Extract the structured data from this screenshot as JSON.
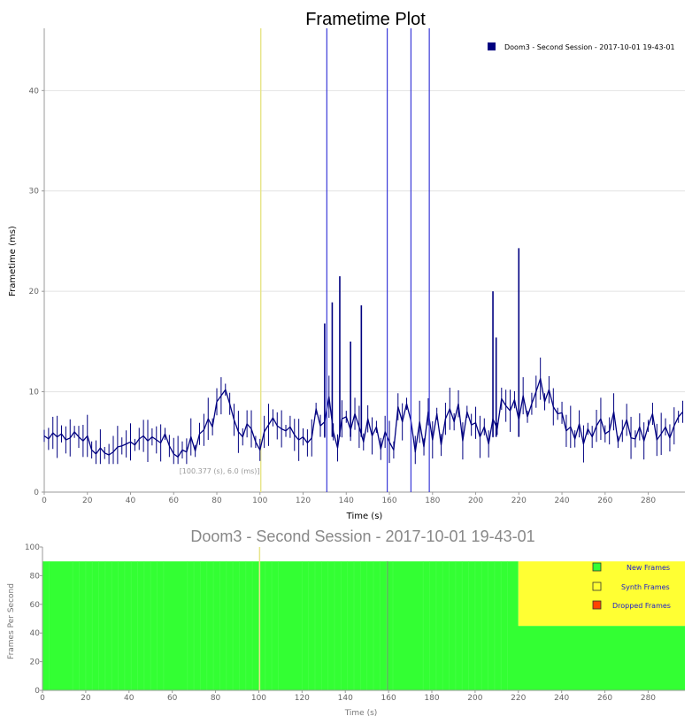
{
  "colors": {
    "series_line": "#000080",
    "spike_line": "#3a3ad8",
    "cursor_line": "#e8e58a",
    "new_frames": "#33ff33",
    "synth_frames": "#ffff33",
    "dropped_frames": "#ff4400",
    "grid": "#e2e2e2"
  },
  "chart_data": [
    {
      "type": "line",
      "title": "Frametime Plot",
      "xlabel": "Time (s)",
      "ylabel": "Frametime (ms)",
      "xlim": [
        0,
        297
      ],
      "ylim": [
        0,
        46.2
      ],
      "xticks": [
        0,
        20,
        40,
        60,
        80,
        100,
        120,
        140,
        160,
        180,
        200,
        220,
        240,
        260,
        280
      ],
      "yticks": [
        0,
        10,
        20,
        30,
        40
      ],
      "grid": true,
      "legend_position": "top-right",
      "series": [
        {
          "name": "Doom3 - Second Session - 2017-10-01 19-43-01",
          "x": [
            0,
            2,
            4,
            6,
            8,
            10,
            12,
            14,
            16,
            18,
            20,
            22,
            24,
            26,
            28,
            30,
            32,
            34,
            36,
            38,
            40,
            42,
            44,
            46,
            48,
            50,
            52,
            54,
            56,
            58,
            60,
            62,
            64,
            66,
            68,
            70,
            72,
            74,
            76,
            78,
            80,
            82,
            84,
            86,
            88,
            90,
            92,
            94,
            96,
            98,
            100,
            102,
            104,
            106,
            108,
            110,
            112,
            114,
            116,
            118,
            120,
            122,
            124,
            126,
            128,
            130,
            132,
            134,
            136,
            138,
            140,
            142,
            144,
            146,
            148,
            150,
            152,
            154,
            156,
            158,
            160,
            162,
            164,
            166,
            168,
            170,
            172,
            174,
            176,
            178,
            180,
            182,
            184,
            186,
            188,
            190,
            192,
            194,
            196,
            198,
            200,
            202,
            204,
            206,
            208,
            210,
            212,
            214,
            216,
            218,
            220,
            222,
            224,
            226,
            228,
            230,
            232,
            234,
            236,
            238,
            240,
            242,
            244,
            246,
            248,
            250,
            252,
            254,
            256,
            258,
            260,
            262,
            264,
            266,
            268,
            270,
            272,
            274,
            276,
            278,
            280,
            282,
            284,
            286,
            288,
            290,
            292,
            294,
            296
          ],
          "values": [
            5.6,
            5.3,
            5.9,
            5.5,
            5.8,
            5.2,
            5.4,
            6.0,
            5.5,
            5.1,
            5.6,
            4.2,
            3.8,
            4.4,
            3.9,
            3.7,
            4.0,
            4.5,
            4.6,
            4.8,
            5.0,
            4.7,
            5.3,
            5.6,
            5.1,
            5.5,
            5.2,
            4.9,
            5.8,
            4.6,
            3.8,
            3.5,
            4.2,
            4.0,
            5.5,
            4.1,
            5.8,
            6.2,
            7.3,
            6.5,
            9.0,
            9.6,
            10.2,
            8.8,
            7.2,
            6.0,
            5.5,
            6.8,
            6.3,
            5.0,
            4.2,
            6.0,
            6.7,
            7.4,
            6.6,
            6.3,
            6.1,
            6.5,
            5.7,
            5.2,
            5.5,
            4.9,
            5.4,
            8.3,
            6.6,
            7.0,
            9.5,
            6.0,
            4.4,
            7.3,
            7.5,
            6.2,
            7.8,
            6.5,
            5.0,
            7.3,
            5.6,
            6.5,
            4.3,
            6.0,
            5.0,
            4.2,
            8.5,
            7.0,
            8.8,
            7.1,
            4.0,
            7.0,
            4.5,
            8.0,
            5.2,
            7.8,
            4.7,
            7.3,
            8.3,
            7.0,
            8.8,
            5.1,
            8.0,
            6.7,
            6.9,
            5.5,
            6.5,
            4.8,
            7.3,
            6.3,
            9.3,
            8.6,
            8.1,
            9.2,
            7.2,
            9.6,
            7.5,
            8.8,
            10.0,
            11.3,
            9.0,
            10.2,
            8.5,
            7.8,
            7.9,
            6.1,
            6.5,
            5.3,
            6.8,
            4.8,
            6.3,
            5.5,
            6.6,
            7.3,
            5.8,
            6.1,
            8.0,
            5.0,
            6.1,
            7.2,
            5.4,
            5.3,
            6.5,
            5.1,
            6.6,
            7.8,
            5.2,
            5.8,
            6.5,
            5.4,
            6.6,
            7.5,
            8.0
          ]
        }
      ],
      "spikes": [
        {
          "x": 131.0,
          "value": 46.2
        },
        {
          "x": 130.0,
          "value": 16.8
        },
        {
          "x": 133.5,
          "value": 18.9
        },
        {
          "x": 137.0,
          "value": 21.5
        },
        {
          "x": 142.0,
          "value": 15.0
        },
        {
          "x": 147.0,
          "value": 18.6
        },
        {
          "x": 159.0,
          "value": 46.2
        },
        {
          "x": 170.0,
          "value": 46.2
        },
        {
          "x": 178.5,
          "value": 46.2
        },
        {
          "x": 208.0,
          "value": 20.0
        },
        {
          "x": 209.5,
          "value": 15.4
        },
        {
          "x": 220.0,
          "value": 24.3
        }
      ],
      "cursor": {
        "x": 100.377,
        "label": "[100.377 (s), 6.0 (ms)]"
      }
    },
    {
      "type": "area",
      "title": "Doom3 - Second Session - 2017-10-01 19-43-01",
      "xlabel": "Time (s)",
      "ylabel": "Frames Per Second",
      "xlim": [
        0,
        297
      ],
      "ylim": [
        0,
        100
      ],
      "xticks": [
        0,
        20,
        40,
        60,
        80,
        100,
        120,
        140,
        160,
        180,
        200,
        220,
        240,
        260,
        280
      ],
      "yticks": [
        0,
        20,
        40,
        60,
        80,
        100
      ],
      "legend_position": "top-right",
      "legend": [
        "New Frames",
        "Synth Frames",
        "Dropped Frames"
      ],
      "series": [
        {
          "name": "New Frames",
          "x": [
            0,
            220,
            220,
            297
          ],
          "values": [
            90,
            90,
            45,
            45
          ]
        },
        {
          "name": "Synth Frames",
          "x": [
            0,
            220,
            220,
            297
          ],
          "values": [
            0,
            0,
            45,
            45
          ]
        },
        {
          "name": "Dropped Frames",
          "x": [
            0,
            297
          ],
          "values": [
            0,
            0
          ]
        }
      ],
      "cursor": {
        "x": 100.377
      }
    }
  ]
}
